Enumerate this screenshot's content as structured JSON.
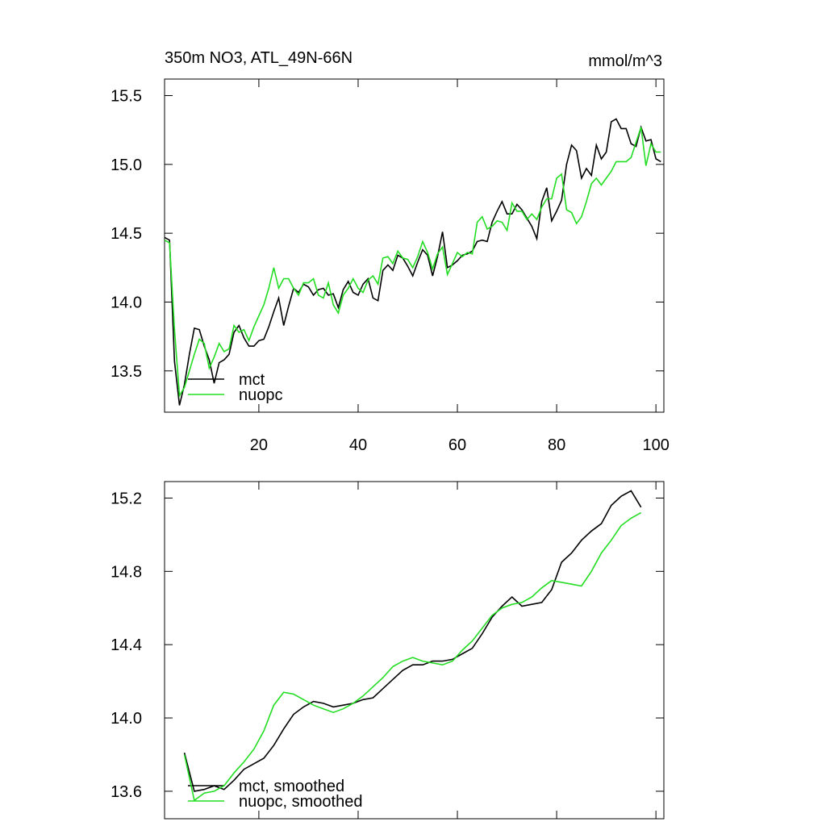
{
  "chart_data": [
    {
      "type": "line",
      "title": "350m NO3, ATL_49N-66N",
      "units": "mmol/m^3",
      "legend": "lower left",
      "x": [
        1,
        2,
        3,
        4,
        5,
        6,
        7,
        8,
        9,
        10,
        11,
        12,
        13,
        14,
        15,
        16,
        17,
        18,
        19,
        20,
        21,
        22,
        23,
        24,
        25,
        26,
        27,
        28,
        29,
        30,
        31,
        32,
        33,
        34,
        35,
        36,
        37,
        38,
        39,
        40,
        41,
        42,
        43,
        44,
        45,
        46,
        47,
        48,
        49,
        50,
        51,
        52,
        53,
        54,
        55,
        56,
        57,
        58,
        59,
        60,
        61,
        62,
        63,
        64,
        65,
        66,
        67,
        68,
        69,
        70,
        71,
        72,
        73,
        74,
        75,
        76,
        77,
        78,
        79,
        80,
        81,
        82,
        83,
        84,
        85,
        86,
        87,
        88,
        89,
        90,
        91,
        92,
        93,
        94,
        95,
        96,
        97,
        98,
        99,
        100,
        101
      ],
      "series": [
        {
          "name": "mct",
          "color": "#000000",
          "values": [
            14.47,
            14.45,
            13.57,
            13.25,
            13.4,
            13.62,
            13.81,
            13.8,
            13.68,
            13.58,
            13.41,
            13.56,
            13.58,
            13.62,
            13.78,
            13.83,
            13.74,
            13.68,
            13.68,
            13.72,
            13.73,
            13.82,
            13.93,
            14.03,
            13.83,
            13.97,
            14.1,
            14.07,
            14.13,
            14.11,
            14.05,
            14.09,
            14.1,
            14.05,
            14.06,
            13.96,
            14.09,
            14.15,
            14.07,
            14.05,
            14.13,
            14.17,
            14.03,
            14.01,
            14.23,
            14.27,
            14.23,
            14.34,
            14.32,
            14.26,
            14.19,
            14.29,
            14.38,
            14.34,
            14.19,
            14.33,
            14.51,
            14.25,
            14.27,
            14.3,
            14.34,
            14.35,
            14.37,
            14.44,
            14.45,
            14.44,
            14.58,
            14.66,
            14.73,
            14.64,
            14.64,
            14.71,
            14.67,
            14.61,
            14.55,
            14.46,
            14.73,
            14.83,
            14.59,
            14.66,
            14.74,
            15.0,
            15.14,
            15.1,
            14.9,
            14.97,
            14.92,
            15.14,
            15.04,
            15.09,
            15.31,
            15.33,
            15.26,
            15.26,
            15.15,
            15.13,
            15.27,
            15.17,
            15.18,
            15.04,
            15.02
          ]
        },
        {
          "name": "nuopc",
          "color": "#22dd22",
          "values": [
            14.45,
            14.43,
            13.8,
            13.32,
            13.38,
            13.5,
            13.62,
            13.73,
            13.7,
            13.52,
            13.6,
            13.7,
            13.64,
            13.66,
            13.83,
            13.78,
            13.8,
            13.72,
            13.82,
            13.9,
            13.98,
            14.1,
            14.25,
            14.1,
            14.17,
            14.17,
            14.1,
            14.05,
            14.14,
            14.14,
            14.17,
            14.05,
            14.03,
            14.14,
            13.98,
            13.92,
            14.05,
            14.1,
            14.17,
            14.1,
            14.07,
            14.16,
            14.19,
            14.13,
            14.32,
            14.33,
            14.28,
            14.37,
            14.32,
            14.31,
            14.25,
            14.33,
            14.44,
            14.36,
            14.24,
            14.35,
            14.4,
            14.2,
            14.28,
            14.36,
            14.33,
            14.36,
            14.35,
            14.58,
            14.62,
            14.53,
            14.55,
            14.59,
            14.58,
            14.52,
            14.72,
            14.66,
            14.66,
            14.6,
            14.64,
            14.6,
            14.69,
            14.75,
            14.75,
            14.9,
            14.93,
            14.67,
            14.65,
            14.57,
            14.62,
            14.73,
            14.86,
            14.9,
            14.85,
            14.9,
            14.95,
            15.02,
            15.02,
            15.02,
            15.05,
            15.16,
            15.27,
            14.99,
            15.15,
            15.09,
            15.09
          ]
        }
      ],
      "xlim": [
        1,
        101.6
      ],
      "ylim": [
        13.2,
        15.62
      ],
      "xticks": [
        20,
        40,
        60,
        80,
        100
      ],
      "yticks": [
        {
          "value": 13.5,
          "label": "13.5"
        },
        {
          "value": 14,
          "label": "14.0"
        },
        {
          "value": 14.5,
          "label": "14.5"
        },
        {
          "value": 15,
          "label": "15.0"
        },
        {
          "value": 15.5,
          "label": "15.5"
        }
      ]
    },
    {
      "type": "line",
      "legend": "lower left",
      "x": [
        5,
        7,
        9,
        11,
        13,
        15,
        17,
        19,
        21,
        23,
        25,
        27,
        29,
        31,
        33,
        35,
        37,
        39,
        41,
        43,
        45,
        47,
        49,
        51,
        53,
        55,
        57,
        59,
        61,
        63,
        65,
        67,
        69,
        71,
        73,
        75,
        77,
        79,
        81,
        83,
        85,
        87,
        89,
        91,
        93,
        95,
        97
      ],
      "series": [
        {
          "name": "mct, smoothed",
          "color": "#000000",
          "values": [
            13.81,
            13.6,
            13.61,
            13.63,
            13.61,
            13.66,
            13.72,
            13.75,
            13.78,
            13.85,
            13.94,
            14.02,
            14.06,
            14.09,
            14.08,
            14.06,
            14.07,
            14.08,
            14.1,
            14.11,
            14.16,
            14.21,
            14.26,
            14.29,
            14.29,
            14.31,
            14.31,
            14.32,
            14.35,
            14.38,
            14.46,
            14.55,
            14.61,
            14.66,
            14.61,
            14.62,
            14.63,
            14.7,
            14.85,
            14.9,
            14.97,
            15.02,
            15.06,
            15.16,
            15.21,
            15.24,
            15.15
          ]
        },
        {
          "name": "nuopc, smoothed",
          "color": "#22dd22",
          "values": [
            13.8,
            13.55,
            13.59,
            13.6,
            13.63,
            13.7,
            13.76,
            13.83,
            13.93,
            14.07,
            14.14,
            14.13,
            14.1,
            14.07,
            14.05,
            14.03,
            14.05,
            14.08,
            14.12,
            14.17,
            14.22,
            14.28,
            14.31,
            14.33,
            14.31,
            14.3,
            14.29,
            14.31,
            14.37,
            14.42,
            14.49,
            14.56,
            14.6,
            14.62,
            14.63,
            14.66,
            14.71,
            14.75,
            14.74,
            14.73,
            14.72,
            14.8,
            14.9,
            14.97,
            15.05,
            15.09,
            15.12
          ]
        }
      ],
      "xlim": [
        1,
        101.6
      ],
      "ylim": [
        13.45,
        15.29
      ],
      "xticks": [
        20,
        40,
        60,
        80,
        100
      ],
      "yticks": [
        {
          "value": 13.6,
          "label": "13.6"
        },
        {
          "value": 14,
          "label": "14.0"
        },
        {
          "value": 14.4,
          "label": "14.4"
        },
        {
          "value": 14.8,
          "label": "14.8"
        },
        {
          "value": 15.2,
          "label": "15.2"
        }
      ]
    }
  ]
}
